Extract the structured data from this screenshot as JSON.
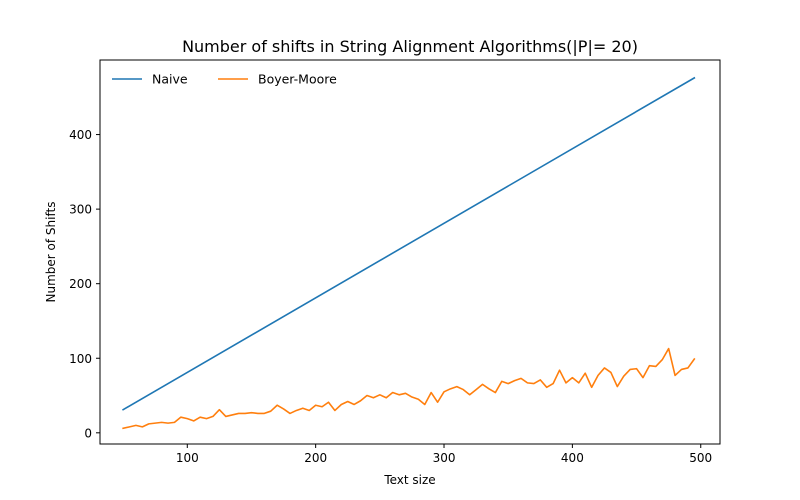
{
  "chart_data": {
    "type": "line",
    "title": "Number of shifts in String Alignment Algorithms(|P|= 20)",
    "xlabel": "Text size",
    "ylabel": "Number of Shifts",
    "xlim": [
      32,
      515
    ],
    "ylim": [
      -15,
      500
    ],
    "xticks": [
      100,
      200,
      300,
      400,
      500
    ],
    "yticks": [
      0,
      100,
      200,
      300,
      400
    ],
    "grid": false,
    "legend_placement": "top-left",
    "series": [
      {
        "name": "Naive",
        "color": "#1f77b4",
        "x": [
          50,
          495
        ],
        "y": [
          31,
          476
        ]
      },
      {
        "name": "Boyer-Moore",
        "color": "#ff7f0e",
        "x": [
          50,
          55,
          60,
          65,
          70,
          75,
          80,
          85,
          90,
          95,
          100,
          105,
          110,
          115,
          120,
          125,
          130,
          135,
          140,
          145,
          150,
          155,
          160,
          165,
          170,
          175,
          180,
          185,
          190,
          195,
          200,
          205,
          210,
          215,
          220,
          225,
          230,
          235,
          240,
          245,
          250,
          255,
          260,
          265,
          270,
          275,
          280,
          285,
          290,
          295,
          300,
          305,
          310,
          315,
          320,
          325,
          330,
          335,
          340,
          345,
          350,
          355,
          360,
          365,
          370,
          375,
          380,
          385,
          390,
          395,
          400,
          405,
          410,
          415,
          420,
          425,
          430,
          435,
          440,
          445,
          450,
          455,
          460,
          465,
          470,
          475,
          480,
          485,
          490,
          495
        ],
        "y": [
          6,
          8,
          10,
          8,
          12,
          13,
          14,
          13,
          14,
          21,
          19,
          16,
          21,
          19,
          22,
          31,
          22,
          24,
          26,
          26,
          27,
          26,
          26,
          29,
          37,
          32,
          26,
          30,
          33,
          30,
          37,
          35,
          41,
          30,
          38,
          42,
          38,
          43,
          50,
          47,
          51,
          47,
          54,
          51,
          53,
          48,
          45,
          38,
          54,
          41,
          55,
          59,
          62,
          58,
          51,
          58,
          65,
          59,
          54,
          69,
          66,
          70,
          73,
          67,
          66,
          71,
          61,
          66,
          84,
          67,
          74,
          67,
          80,
          61,
          77,
          87,
          81,
          62,
          76,
          85,
          86,
          74,
          90,
          89,
          98,
          113,
          77,
          85,
          87,
          99
        ]
      }
    ]
  }
}
